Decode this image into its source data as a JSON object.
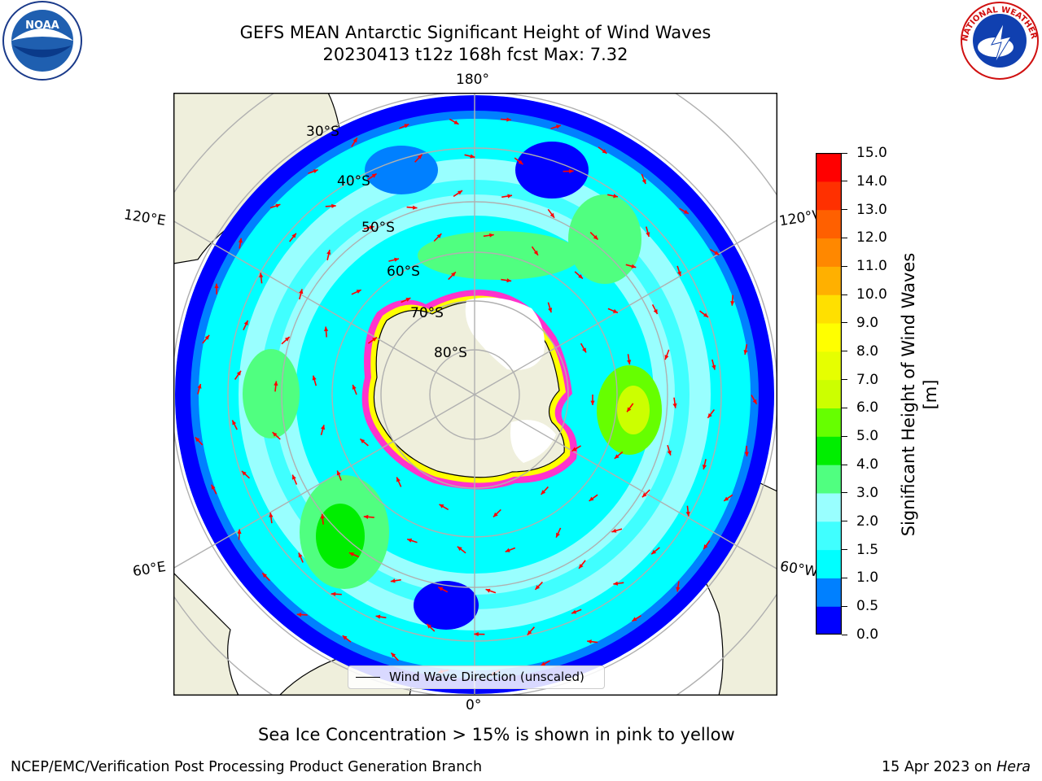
{
  "title": {
    "line1": "GEFS MEAN Antarctic Significant Height of Wind Waves",
    "line2": "20230413 t12z 168h fcst   Max: 7.32"
  },
  "logos": {
    "noaa": {
      "text": "NOAA",
      "icon": "noaa-logo"
    },
    "nws": {
      "text": "NATIONAL WEATHER SERVICE",
      "icon": "nws-logo"
    }
  },
  "map": {
    "projection": "south-polar-stereographic",
    "longitude_labels": {
      "top": "180°",
      "bottom": "0°",
      "upper_left": "120°E",
      "lower_left": "60°E",
      "upper_right": "120°W",
      "lower_right": "60°W"
    },
    "latitude_labels": [
      "30°S",
      "40°S",
      "50°S",
      "60°S",
      "70°S",
      "80°S"
    ],
    "legend": {
      "label": "Wind Wave Direction (unscaled)"
    },
    "colors": {
      "land": "#efefdc",
      "coast": "#000000",
      "grid": "#b0b0b0",
      "arrows": "#ff0000",
      "sea_ice": [
        "#ff33cc",
        "#ffff00"
      ]
    }
  },
  "colorbar": {
    "label": "Significant Height of Wind Waves [m]",
    "ticks": [
      "0.0",
      "0.5",
      "1.0",
      "1.5",
      "2.0",
      "3.0",
      "4.0",
      "5.0",
      "6.0",
      "7.0",
      "8.0",
      "9.0",
      "10.0",
      "11.0",
      "12.0",
      "13.0",
      "14.0",
      "15.0"
    ],
    "colors": [
      "#0000ff",
      "#0080ff",
      "#00ffff",
      "#40ffff",
      "#99ffff",
      "#50ff80",
      "#00ee00",
      "#66ff00",
      "#ccff00",
      "#e6ff00",
      "#ffff00",
      "#ffe000",
      "#ffb000",
      "#ff8800",
      "#ff6000",
      "#ff3000",
      "#ff0000"
    ]
  },
  "notes": {
    "sea_ice": "Sea Ice Concentration > 15% is shown in pink to yellow"
  },
  "footer": {
    "left": "NCEP/EMC/Verification Post Processing Product Generation Branch",
    "date": "15 Apr 2023 on ",
    "host": "Hera"
  }
}
